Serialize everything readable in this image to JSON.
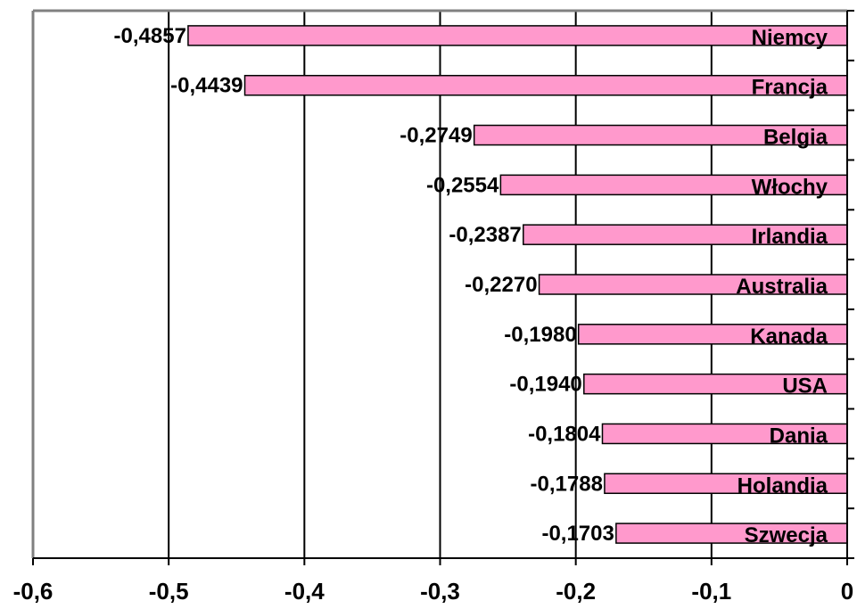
{
  "chart_data": {
    "type": "bar",
    "orientation": "horizontal",
    "categories": [
      "Niemcy",
      "Francja",
      "Belgia",
      "Włochy",
      "Irlandia",
      "Australia",
      "Kanada",
      "USA",
      "Dania",
      "Holandia",
      "Szwecja"
    ],
    "values": [
      -0.4857,
      -0.4439,
      -0.2749,
      -0.2554,
      -0.2387,
      -0.227,
      -0.198,
      -0.194,
      -0.1804,
      -0.1788,
      -0.1703
    ],
    "value_labels": [
      "-0,4857",
      "-0,4439",
      "-0,2749",
      "-0,2554",
      "-0,2387",
      "-0,2270",
      "-0,1980",
      "-0,1940",
      "-0,1804",
      "-0,1788",
      "-0,1703"
    ],
    "x_ticks": [
      -0.6,
      -0.5,
      -0.4,
      -0.3,
      -0.2,
      -0.1,
      0
    ],
    "x_tick_labels": [
      "-0,6",
      "-0,5",
      "-0,4",
      "-0,3",
      "-0,2",
      "-0,1",
      "0"
    ],
    "xlim": [
      -0.6,
      0
    ],
    "title": "",
    "xlabel": "",
    "ylabel": "",
    "grid": "vertical",
    "bar_color": "#ff99cc",
    "bar_edge_color": "#000000",
    "axis_color": "#808080"
  }
}
